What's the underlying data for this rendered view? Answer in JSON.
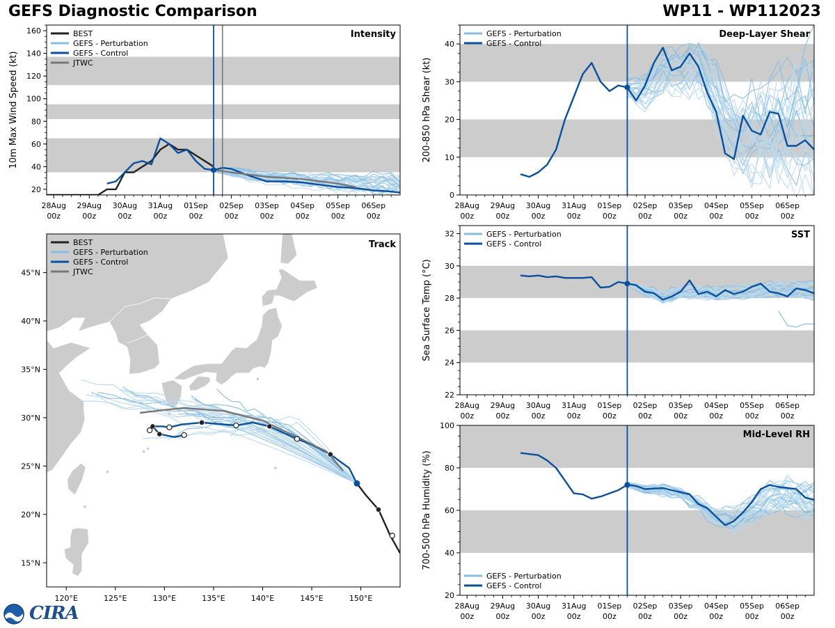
{
  "figure": {
    "title_left": "GEFS Diagnostic Comparison",
    "title_right": "WP11 - WP112023",
    "logo_text": "CIRA",
    "colors": {
      "best": "#222222",
      "perturbation": "#86bde0",
      "perturbation_light": "#b9d9ee",
      "control": "#0a4f9c",
      "jtwc": "#777777",
      "band": "#cccccc",
      "land": "#cccccc"
    }
  },
  "x_ticks": [
    [
      "28Aug",
      "00z"
    ],
    [
      "29Aug",
      "00z"
    ],
    [
      "30Aug",
      "00z"
    ],
    [
      "31Aug",
      "00z"
    ],
    [
      "01Sep",
      "00z"
    ],
    [
      "02Sep",
      "00z"
    ],
    [
      "03Sep",
      "00z"
    ],
    [
      "04Sep",
      "00z"
    ],
    [
      "05Sep",
      "00z"
    ],
    [
      "06Sep",
      "00z"
    ]
  ],
  "chart_data": [
    {
      "id": "intensity",
      "type": "line",
      "title": "Intensity",
      "ylabel": "10m Max Wind Speed (kt)",
      "xlabel": "",
      "x_units": "days since 28Aug 00z",
      "xlim": [
        -0.2,
        9.75
      ],
      "ylim": [
        15,
        165
      ],
      "yticks": [
        20,
        40,
        60,
        80,
        100,
        120,
        140,
        160
      ],
      "bands": [
        [
          35,
          65
        ],
        [
          82,
          95
        ],
        [
          112,
          137
        ]
      ],
      "legend": "top-left",
      "legend_entries": [
        "BEST",
        "GEFS - Perturbation",
        "GEFS - Control",
        "JTWC"
      ],
      "init_time": 4.5,
      "jtwc_time": 4.75,
      "series": [
        {
          "name": "BEST",
          "role": "best",
          "x": [
            -0.2,
            0,
            0.5,
            1,
            1.25,
            1.5,
            1.75,
            2,
            2.25,
            2.5,
            2.75,
            3,
            3.25,
            3.5,
            3.75,
            4,
            4.25,
            4.5
          ],
          "y": [
            15,
            15,
            15,
            15,
            15,
            20,
            20,
            35,
            35,
            40,
            45,
            55,
            60,
            55,
            55,
            50,
            45,
            40
          ]
        },
        {
          "name": "GEFS - Control",
          "role": "control",
          "x": [
            1.5,
            1.75,
            2,
            2.25,
            2.5,
            2.75,
            3,
            3.25,
            3.5,
            3.75,
            4,
            4.25,
            4.5,
            4.75,
            5,
            5.5,
            6,
            6.5,
            7,
            7.5,
            8,
            8.5,
            9,
            9.5,
            9.75
          ],
          "y": [
            25,
            27,
            35,
            43,
            45,
            42,
            65,
            60,
            52,
            55,
            45,
            38,
            37,
            39,
            38,
            32,
            27,
            27,
            26,
            24,
            22,
            21,
            19,
            18,
            17
          ]
        },
        {
          "name": "JTWC",
          "role": "jtwc",
          "x": [
            4.5,
            5,
            5.5,
            6,
            6.5,
            7,
            7.5,
            8,
            8.5
          ],
          "y": [
            37,
            35,
            33,
            31,
            30,
            29,
            27,
            25,
            22
          ]
        }
      ],
      "perturbation_spread": {
        "x": [
          4.5,
          5,
          5.5,
          6,
          6.5,
          7,
          7.5,
          8,
          8.5,
          9,
          9.5,
          9.75
        ],
        "center": [
          37,
          35,
          32,
          30,
          29,
          27,
          26,
          25,
          24,
          24,
          23,
          23
        ],
        "amplitude": [
          2,
          4,
          5,
          5,
          6,
          6,
          7,
          8,
          9,
          10,
          10,
          10
        ],
        "members": 30
      }
    },
    {
      "id": "shear",
      "type": "line",
      "title": "Deep-Layer Shear",
      "ylabel": "200-850 hPa Shear (kt)",
      "xlabel": "",
      "x_units": "days since 28Aug 00z",
      "xlim": [
        -0.2,
        9.75
      ],
      "ylim": [
        0,
        45
      ],
      "yticks": [
        0,
        10,
        20,
        30,
        40
      ],
      "bands": [
        [
          10,
          20
        ],
        [
          30,
          40
        ]
      ],
      "legend": "top-left",
      "legend_entries": [
        "GEFS - Perturbation",
        "GEFS - Control"
      ],
      "init_time": 4.5,
      "series": [
        {
          "name": "GEFS - Control",
          "role": "control",
          "x": [
            1.5,
            1.75,
            2,
            2.25,
            2.5,
            2.75,
            3,
            3.25,
            3.5,
            3.75,
            4,
            4.25,
            4.5,
            4.75,
            5,
            5.25,
            5.5,
            5.75,
            6,
            6.25,
            6.5,
            6.75,
            7,
            7.25,
            7.5,
            7.75,
            8,
            8.25,
            8.5,
            8.75,
            9,
            9.25,
            9.5,
            9.75
          ],
          "y": [
            5.5,
            4.8,
            6,
            8,
            12,
            20,
            26,
            32,
            35,
            30,
            27.5,
            29,
            28.5,
            25,
            29,
            35,
            39,
            33,
            34,
            37.5,
            34,
            27,
            22,
            11,
            9.5,
            21,
            17,
            16,
            22,
            21.5,
            13,
            13,
            14.5,
            12
          ]
        }
      ],
      "perturbation_spread": {
        "x": [
          4.5,
          5,
          5.5,
          6,
          6.5,
          7,
          7.5,
          8,
          8.5,
          9,
          9.5,
          9.75
        ],
        "center": [
          28.5,
          28,
          33,
          34,
          35,
          27,
          17,
          16,
          17,
          20,
          22,
          22
        ],
        "amplitude": [
          3,
          5,
          6,
          7,
          8,
          9,
          11,
          13,
          15,
          17,
          19,
          20
        ],
        "members": 30
      }
    },
    {
      "id": "sst",
      "type": "line",
      "title": "SST",
      "ylabel": "Sea Surface Temp (°C)",
      "xlabel": "",
      "x_units": "days since 28Aug 00z",
      "xlim": [
        -0.2,
        9.75
      ],
      "ylim": [
        22,
        32.5
      ],
      "yticks": [
        22,
        24,
        26,
        28,
        30,
        32
      ],
      "bands": [
        [
          24,
          26
        ],
        [
          28,
          30
        ]
      ],
      "legend": "top-left",
      "legend_entries": [
        "GEFS - Perturbation",
        "GEFS - Control"
      ],
      "init_time": 4.5,
      "series": [
        {
          "name": "GEFS - Control",
          "role": "control",
          "x": [
            1.5,
            1.75,
            2,
            2.25,
            2.5,
            2.75,
            3,
            3.25,
            3.5,
            3.75,
            4,
            4.25,
            4.5,
            4.75,
            5,
            5.25,
            5.5,
            5.75,
            6,
            6.25,
            6.5,
            6.75,
            7,
            7.25,
            7.5,
            7.75,
            8,
            8.25,
            8.5,
            8.75,
            9,
            9.25,
            9.5,
            9.75
          ],
          "y": [
            29.4,
            29.35,
            29.4,
            29.3,
            29.35,
            29.25,
            29.25,
            29.25,
            29.3,
            28.65,
            28.7,
            29,
            28.9,
            28.8,
            28.4,
            28.3,
            27.9,
            28.1,
            28.4,
            29.1,
            28.25,
            28.4,
            28.1,
            28.5,
            28.25,
            28.4,
            28.7,
            28.9,
            28.4,
            28.3,
            28.1,
            28.6,
            28.5,
            28.3
          ]
        }
      ],
      "perturbation_spread": {
        "x": [
          4.5,
          5,
          5.5,
          6,
          6.5,
          7,
          7.5,
          8,
          8.5,
          9,
          9.5,
          9.75
        ],
        "center": [
          28.9,
          28.5,
          28,
          28.4,
          28.4,
          28.3,
          28.4,
          28.5,
          28.6,
          28.5,
          28.6,
          28.5
        ],
        "amplitude": [
          0.1,
          0.3,
          0.4,
          0.4,
          0.4,
          0.4,
          0.4,
          0.5,
          0.5,
          0.6,
          0.6,
          0.6
        ],
        "members": 30
      },
      "outlier_member": {
        "x": [
          8.75,
          9,
          9.25,
          9.5,
          9.75
        ],
        "y": [
          27.2,
          26.3,
          26.2,
          26.4,
          26.4
        ]
      }
    },
    {
      "id": "rh",
      "type": "line",
      "title": "Mid-Level RH",
      "ylabel": "700-500 hPa Humidity (%)",
      "xlabel": "",
      "x_units": "days since 28Aug 00z",
      "xlim": [
        -0.2,
        9.75
      ],
      "ylim": [
        20,
        100
      ],
      "yticks": [
        20,
        40,
        60,
        80,
        100
      ],
      "bands": [
        [
          40,
          60
        ],
        [
          80,
          100
        ]
      ],
      "legend": "bottom-left",
      "legend_entries": [
        "GEFS - Perturbation",
        "GEFS - Control"
      ],
      "init_time": 4.5,
      "series": [
        {
          "name": "GEFS - Control",
          "role": "control",
          "x": [
            1.5,
            1.75,
            2,
            2.25,
            2.5,
            2.75,
            3,
            3.25,
            3.5,
            3.75,
            4,
            4.25,
            4.5,
            4.75,
            5,
            5.5,
            6,
            6.25,
            6.5,
            6.75,
            7,
            7.25,
            7.5,
            7.75,
            8,
            8.25,
            8.5,
            8.75,
            9,
            9.25,
            9.5,
            9.75
          ],
          "y": [
            87,
            86.5,
            86,
            83.5,
            80,
            74,
            68,
            67.5,
            65.5,
            66.5,
            68,
            69.5,
            72,
            71.5,
            70,
            70.5,
            68.5,
            67.5,
            63,
            61,
            57,
            53,
            55,
            59,
            64,
            70,
            72,
            71,
            70.5,
            70,
            66,
            65
          ]
        }
      ],
      "perturbation_spread": {
        "x": [
          4.5,
          5,
          5.5,
          6,
          6.5,
          7,
          7.5,
          8,
          8.5,
          9,
          9.5,
          9.75
        ],
        "center": [
          72,
          70,
          69.5,
          67.5,
          63,
          57,
          55,
          60,
          66,
          67,
          65,
          63
        ],
        "amplitude": [
          1,
          2,
          3,
          3,
          4,
          5,
          6,
          7,
          8,
          8,
          9,
          10
        ],
        "members": 30
      }
    },
    {
      "id": "track",
      "type": "line",
      "title": "Track",
      "xlabel": "",
      "ylabel": "",
      "x_units": "degrees longitude (E)",
      "y_units": "degrees latitude (N)",
      "xlim": [
        118,
        154
      ],
      "ylim": [
        12.5,
        49
      ],
      "xticks": [
        120,
        125,
        130,
        135,
        140,
        145,
        150
      ],
      "xtick_labels": [
        "120°E",
        "125°E",
        "130°E",
        "135°E",
        "140°E",
        "145°E",
        "150°E"
      ],
      "yticks": [
        15,
        20,
        25,
        30,
        35,
        40,
        45
      ],
      "ytick_labels": [
        "15°N",
        "20°N",
        "25°N",
        "30°N",
        "35°N",
        "40°N",
        "45°N"
      ],
      "legend": "top-left",
      "legend_entries": [
        "BEST",
        "GEFS - Perturbation",
        "GEFS - Control",
        "JTWC"
      ],
      "series": [
        {
          "name": "BEST",
          "role": "best",
          "x": [
            154,
            153,
            151.8,
            150.5,
            149.6
          ],
          "y": [
            16,
            17.8,
            20.5,
            22,
            23.2
          ]
        },
        {
          "name": "GEFS - Control",
          "role": "control",
          "x": [
            149.6,
            148.8,
            146.9,
            145,
            143.5,
            140.7,
            139,
            137.3,
            133.8,
            131.8,
            130.5,
            129.8,
            128.8,
            129.5,
            131,
            132
          ],
          "y": [
            23.2,
            24.8,
            26.2,
            27.2,
            27.8,
            29.1,
            29.5,
            29.2,
            29.5,
            29.3,
            29,
            29.1,
            29.1,
            28.3,
            28,
            28.2
          ]
        },
        {
          "name": "JTWC",
          "role": "jtwc",
          "x": [
            148.2,
            146.5,
            143.5,
            140,
            136,
            132,
            130,
            127.5
          ],
          "y": [
            24.5,
            26.5,
            28,
            29.7,
            30.7,
            31,
            30.8,
            30.5
          ]
        }
      ],
      "markers_filled": [
        [
          151.8,
          20.5
        ],
        [
          146.9,
          26.2
        ],
        [
          140.7,
          29.1
        ],
        [
          133.8,
          29.5
        ],
        [
          129.5,
          28.3
        ],
        [
          128.8,
          29.1
        ]
      ],
      "markers_open": [
        [
          153.2,
          17.8
        ],
        [
          143.5,
          27.8
        ],
        [
          137.3,
          29.2
        ],
        [
          130.5,
          29
        ],
        [
          132,
          28.2
        ],
        [
          128.5,
          28.7
        ]
      ],
      "control_start": [
        149.6,
        23.2
      ],
      "perturbation_track_count": 24
    }
  ]
}
